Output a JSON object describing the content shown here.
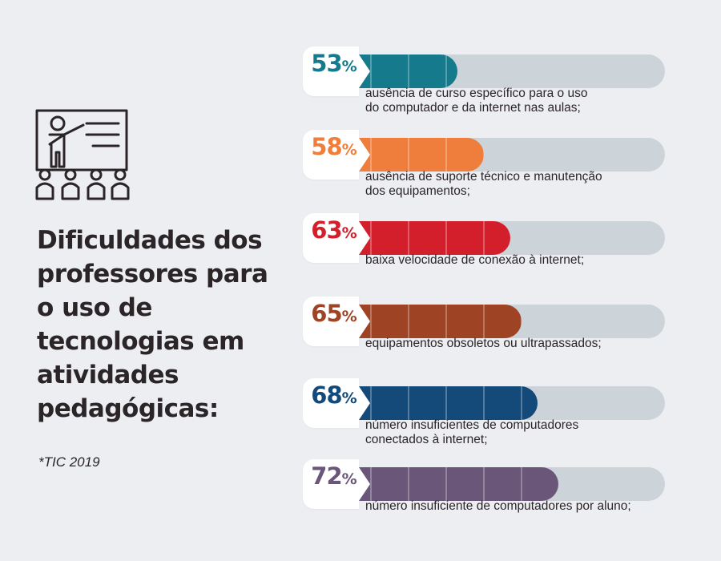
{
  "title": "Dificuldades dos professores para o uso de tecnologias em atividades pedagógicas:",
  "source": "*TIC 2019",
  "icon": "teacher-presentation-icon",
  "chart_data": {
    "type": "bar",
    "orientation": "horizontal",
    "xlim": [
      0,
      100
    ],
    "unit": "%",
    "categories": [
      "ausência de curso específico para o uso do computador e da internet nas aulas;",
      "ausência de suporte técnico e manutenção dos equipamentos;",
      "baixa velocidade de conexão à internet;",
      "equipamentos obsoletos ou ultrapassados;",
      "número insuficientes de computadores conectados à internet;",
      "número insuficiente de computadores por aluno;"
    ],
    "values": [
      53,
      58,
      63,
      65,
      68,
      72
    ],
    "labels": [
      [
        "ausência de curso específico para o uso",
        "do computador e da internet nas aulas;"
      ],
      [
        "ausência de suporte técnico e manutenção",
        "dos equipamentos;"
      ],
      [
        "baixa velocidade de conexão à internet;"
      ],
      [
        "equipamentos obsoletos ou ultrapassados;"
      ],
      [
        "número insuficientes de computadores",
        "conectados à internet;"
      ],
      [
        "número insuficiente de computadores por aluno;"
      ]
    ],
    "colors": [
      "#147a8c",
      "#ef7d3b",
      "#d21f2b",
      "#9e4324",
      "#134a7a",
      "#6a5679"
    ],
    "track_color": "#ccd3d9"
  }
}
